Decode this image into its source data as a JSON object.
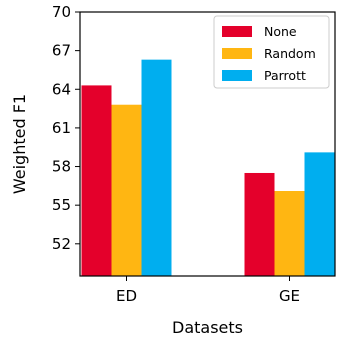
{
  "chart_data": {
    "type": "bar",
    "title": "",
    "xlabel": "Datasets",
    "ylabel": "Weighted F1",
    "categories": [
      "ED",
      "GE"
    ],
    "series": [
      {
        "name": "None",
        "values": [
          64.3,
          57.5
        ],
        "color": "#e4002b"
      },
      {
        "name": "Random",
        "values": [
          62.8,
          56.1
        ],
        "color": "#ffb612"
      },
      {
        "name": "Parrott",
        "values": [
          66.3,
          59.1
        ],
        "color": "#00aeef"
      }
    ],
    "ylim": [
      49.5,
      70
    ],
    "yticks": [
      52,
      55,
      58,
      61,
      64,
      67,
      70
    ],
    "grid": false,
    "legend_position": "top-right"
  }
}
